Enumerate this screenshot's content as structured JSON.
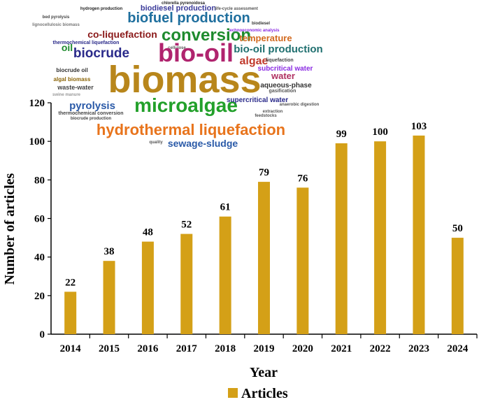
{
  "chart_data": {
    "type": "bar",
    "categories": [
      "2014",
      "2015",
      "2016",
      "2017",
      "2018",
      "2019",
      "2020",
      "2021",
      "2022",
      "2023",
      "2024"
    ],
    "series": [
      {
        "name": "Articles",
        "values": [
          22,
          38,
          48,
          52,
          61,
          79,
          76,
          99,
          100,
          103,
          50
        ],
        "color": "#D4A017"
      }
    ],
    "xlabel": "Year",
    "ylabel": "Number of articles",
    "ylim": [
      0,
      120
    ],
    "yticks": [
      0,
      20,
      40,
      60,
      80,
      100,
      120
    ],
    "grid": false,
    "legend": "bottom-center"
  },
  "word_cloud": [
    {
      "text": "chlorella pyrenoidosa",
      "color": "#222222"
    },
    {
      "text": "hydrogen production",
      "color": "#222222"
    },
    {
      "text": "biodiesel production",
      "color": "#3a3a9a"
    },
    {
      "text": "life-cycle assessment",
      "color": "#555555"
    },
    {
      "text": "bed pyrolysis",
      "color": "#444444"
    },
    {
      "text": "biofuel production",
      "color": "#1f6f9e"
    },
    {
      "text": "lignocellulosic biomass",
      "color": "#777777"
    },
    {
      "text": "biodiesel",
      "color": "#333333"
    },
    {
      "text": "technoeconomic analysis",
      "color": "#8a2be2"
    },
    {
      "text": "co-liquefaction",
      "color": "#8b1a1a"
    },
    {
      "text": "conversion",
      "color": "#1e8b2e"
    },
    {
      "text": "temperature",
      "color": "#d2691e"
    },
    {
      "text": "thermochemical liquefaction",
      "color": "#2a2a8a"
    },
    {
      "text": "oil",
      "color": "#1e8b2e"
    },
    {
      "text": "cellulose",
      "color": "#5a5a5a"
    },
    {
      "text": "bio-oil production",
      "color": "#1f6f6f"
    },
    {
      "text": "biocrude",
      "color": "#2a2a8a"
    },
    {
      "text": "bio-oil",
      "color": "#b0246e"
    },
    {
      "text": "algae",
      "color": "#c0392b"
    },
    {
      "text": "liquefaction",
      "color": "#444444"
    },
    {
      "text": "biomass",
      "color": "#b8861b"
    },
    {
      "text": "subcritical water",
      "color": "#8a2be2"
    },
    {
      "text": "biocrude oil",
      "color": "#333333"
    },
    {
      "text": "water",
      "color": "#b03060"
    },
    {
      "text": "algal biomass",
      "color": "#8b6508"
    },
    {
      "text": "aqueous-phase",
      "color": "#333333"
    },
    {
      "text": "gasification",
      "color": "#555555"
    },
    {
      "text": "waste-water",
      "color": "#444444"
    },
    {
      "text": "swine manure",
      "color": "#999999"
    },
    {
      "text": "pyrolysis",
      "color": "#2a5aa8"
    },
    {
      "text": "microalgae",
      "color": "#22a02a"
    },
    {
      "text": "supercritical water",
      "color": "#2a2a8a"
    },
    {
      "text": "anaerobic digestion",
      "color": "#555555"
    },
    {
      "text": "thermochemical conversion",
      "color": "#444444"
    },
    {
      "text": "biocrude production",
      "color": "#444444"
    },
    {
      "text": "extraction",
      "color": "#555555"
    },
    {
      "text": "feedstocks",
      "color": "#555555"
    },
    {
      "text": "hydrothermal liquefaction",
      "color": "#e8741c"
    },
    {
      "text": "quality",
      "color": "#555555"
    },
    {
      "text": "sewage-sludge",
      "color": "#2a5aa8"
    }
  ]
}
